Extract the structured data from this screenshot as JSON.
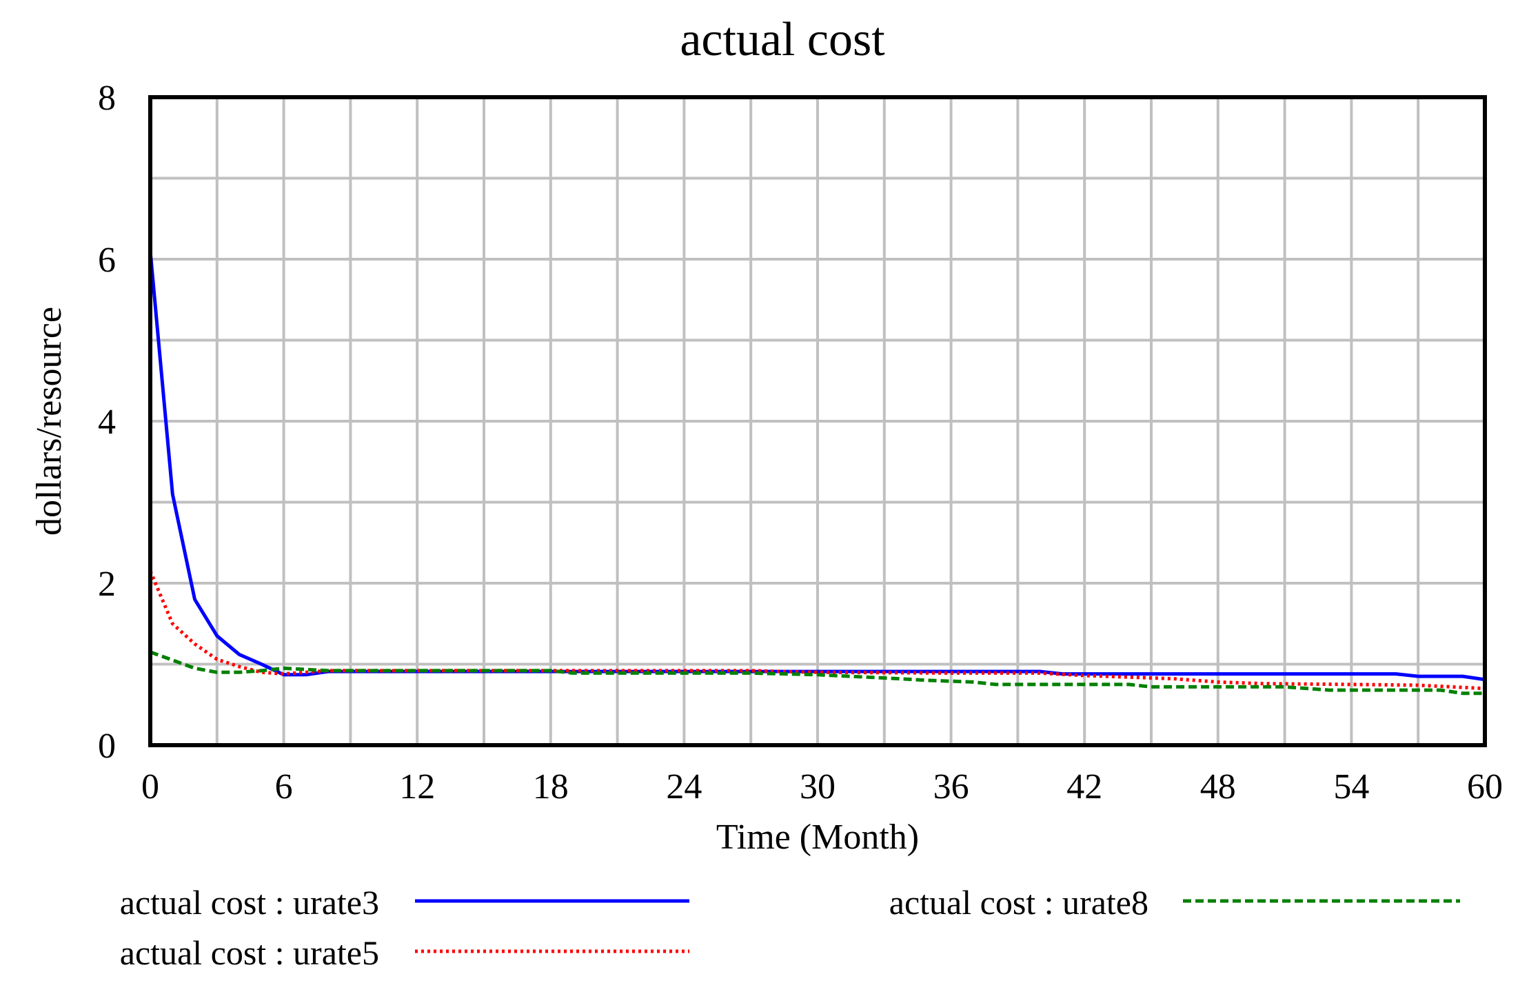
{
  "chart_data": {
    "type": "line",
    "title": "actual cost",
    "xlabel": "Time (Month)",
    "ylabel": "dollars/resource",
    "xlim": [
      0,
      60
    ],
    "ylim": [
      0,
      8
    ],
    "x_ticks": [
      "0",
      "6",
      "12",
      "18",
      "24",
      "30",
      "36",
      "42",
      "48",
      "54",
      "60"
    ],
    "y_ticks": [
      "0",
      "2",
      "4",
      "6",
      "8"
    ],
    "grid": true,
    "legend_position": "bottom",
    "series": [
      {
        "name": "actual cost : urate3",
        "color": "#0000ff",
        "style": "solid",
        "points": [
          [
            0,
            6.1
          ],
          [
            1,
            3.1
          ],
          [
            2,
            1.8
          ],
          [
            3,
            1.35
          ],
          [
            4,
            1.12
          ],
          [
            5,
            1.0
          ],
          [
            6,
            0.87
          ],
          [
            7,
            0.87
          ],
          [
            8,
            0.91
          ],
          [
            12,
            0.91
          ],
          [
            18,
            0.91
          ],
          [
            24,
            0.91
          ],
          [
            30,
            0.91
          ],
          [
            36,
            0.91
          ],
          [
            40,
            0.91
          ],
          [
            41,
            0.88
          ],
          [
            44,
            0.88
          ],
          [
            48,
            0.88
          ],
          [
            54,
            0.88
          ],
          [
            56,
            0.88
          ],
          [
            57,
            0.85
          ],
          [
            59,
            0.85
          ],
          [
            60,
            0.81
          ]
        ]
      },
      {
        "name": "actual cost : urate5",
        "color": "#ff0000",
        "style": "dotted",
        "points": [
          [
            0,
            2.15
          ],
          [
            1,
            1.5
          ],
          [
            2,
            1.25
          ],
          [
            3,
            1.06
          ],
          [
            4,
            0.97
          ],
          [
            5,
            0.9
          ],
          [
            6,
            0.88
          ],
          [
            7,
            0.9
          ],
          [
            8,
            0.92
          ],
          [
            12,
            0.92
          ],
          [
            18,
            0.92
          ],
          [
            24,
            0.92
          ],
          [
            27,
            0.92
          ],
          [
            30,
            0.9
          ],
          [
            36,
            0.89
          ],
          [
            40,
            0.89
          ],
          [
            42,
            0.86
          ],
          [
            44,
            0.84
          ],
          [
            46,
            0.82
          ],
          [
            48,
            0.78
          ],
          [
            50,
            0.76
          ],
          [
            54,
            0.75
          ],
          [
            57,
            0.74
          ],
          [
            60,
            0.7
          ]
        ]
      },
      {
        "name": "actual cost : urate8",
        "color": "#008000",
        "style": "dashed",
        "points": [
          [
            0,
            1.15
          ],
          [
            1,
            1.05
          ],
          [
            2,
            0.95
          ],
          [
            3,
            0.9
          ],
          [
            4,
            0.9
          ],
          [
            5,
            0.92
          ],
          [
            6,
            0.95
          ],
          [
            8,
            0.92
          ],
          [
            12,
            0.92
          ],
          [
            18,
            0.92
          ],
          [
            19,
            0.89
          ],
          [
            24,
            0.89
          ],
          [
            27,
            0.89
          ],
          [
            30,
            0.87
          ],
          [
            33,
            0.83
          ],
          [
            35,
            0.8
          ],
          [
            37,
            0.78
          ],
          [
            38,
            0.75
          ],
          [
            42,
            0.75
          ],
          [
            44,
            0.75
          ],
          [
            45,
            0.72
          ],
          [
            48,
            0.72
          ],
          [
            51,
            0.72
          ],
          [
            53,
            0.68
          ],
          [
            56,
            0.68
          ],
          [
            58,
            0.68
          ],
          [
            59,
            0.64
          ],
          [
            60,
            0.64
          ]
        ]
      }
    ]
  }
}
